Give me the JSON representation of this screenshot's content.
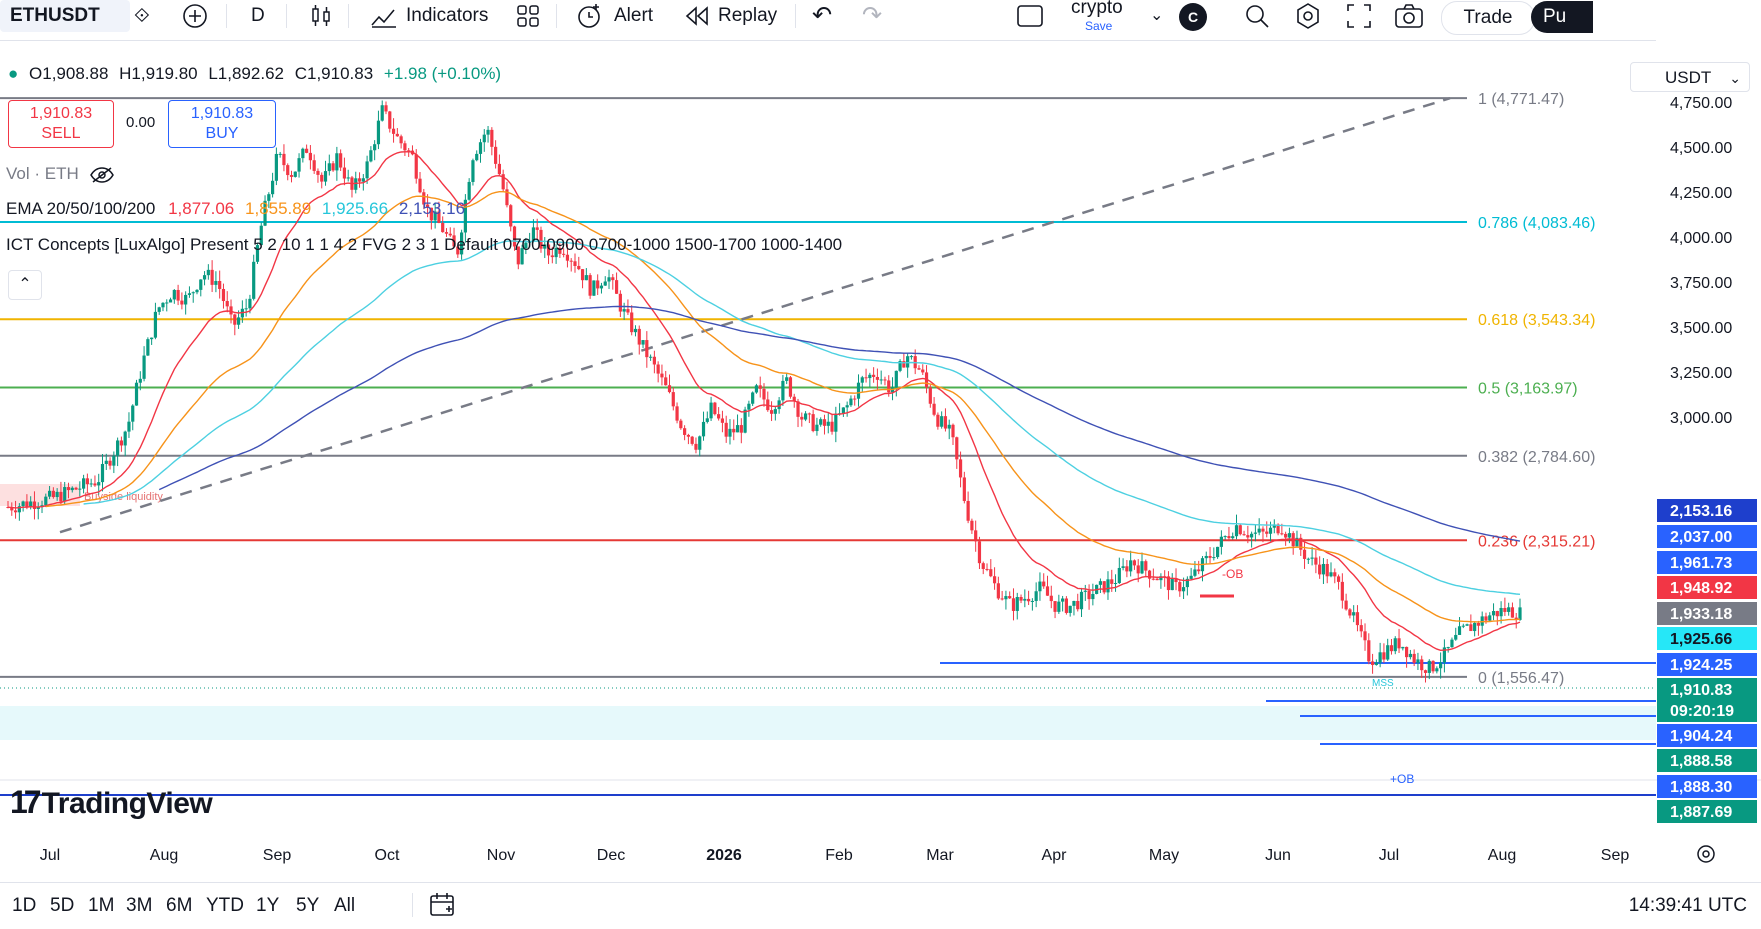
{
  "toolbar": {
    "symbol": "ETHUSDT",
    "interval": "D",
    "indicators": "Indicators",
    "alert": "Alert",
    "replay": "Replay",
    "layout_name": "crypto",
    "save_label": "Save",
    "avatar": "C",
    "trade": "Trade",
    "publish": "Pu"
  },
  "legend": {
    "open": "O1,908.88",
    "high": "H1,919.80",
    "low": "L1,892.62",
    "close": "C1,910.83",
    "change": "+1.98 (+0.10%)",
    "sell_price": "1,910.83",
    "sell_label": "SELL",
    "spread": "0.00",
    "buy_price": "1,910.83",
    "buy_label": "BUY",
    "vol": "Vol · ETH",
    "ema_name": "EMA 20/50/100/200",
    "ema20": "1,877.06",
    "ema50": "1,855.89",
    "ema100": "1,925.66",
    "ema200": "2,153.16",
    "ict": "ICT Concepts [LuxAlgo] Present 5 2 10 1 1 4 2 FVG 2 3 1 Default 0700-0900 0700-1000 1500-1700 1000-1400"
  },
  "currency": "USDT",
  "watermark": "TradingView",
  "bottom": {
    "ranges": [
      "1D",
      "5D",
      "1M",
      "3M",
      "6M",
      "YTD",
      "1Y",
      "5Y",
      "All"
    ],
    "clock": "14:39:41 UTC"
  },
  "colors": {
    "up": "#089981",
    "down": "#f23645",
    "ema20": "#f23645",
    "ema50": "#f7931a",
    "ema100": "#4dd0e1",
    "ema200": "#3f51b5"
  },
  "chart_data": {
    "type": "candlestick",
    "x_ticks": [
      "Jul",
      "Aug",
      "Sep",
      "Oct",
      "Nov",
      "Dec",
      "2026",
      "Feb",
      "Mar",
      "Apr",
      "May",
      "Jun",
      "Jul",
      "Aug",
      "Sep"
    ],
    "y_ticks": [
      4750,
      4500,
      4250,
      4000,
      3750,
      3500,
      3250,
      3000
    ],
    "y_tick_labels": [
      "4,750.00",
      "4,500.00",
      "4,250.00",
      "4,000.00",
      "3,750.00",
      "3,500.00",
      "3,250.00",
      "3,000.00"
    ],
    "close_path": [
      [
        0,
        2500
      ],
      [
        3,
        2550
      ],
      [
        6,
        2650
      ],
      [
        8,
        2950
      ],
      [
        9,
        3300
      ],
      [
        10,
        3600
      ],
      [
        11,
        3700
      ],
      [
        12,
        3650
      ],
      [
        13,
        3800
      ],
      [
        14,
        3750
      ],
      [
        15,
        3500
      ],
      [
        16,
        3620
      ],
      [
        17,
        4100
      ],
      [
        18,
        4450
      ],
      [
        19,
        4350
      ],
      [
        20,
        4500
      ],
      [
        21,
        4300
      ],
      [
        22,
        4450
      ],
      [
        23,
        4250
      ],
      [
        24,
        4400
      ],
      [
        25,
        4700
      ],
      [
        26,
        4550
      ],
      [
        27,
        4450
      ],
      [
        28,
        4150
      ],
      [
        29,
        4050
      ],
      [
        30,
        3900
      ],
      [
        31,
        4450
      ],
      [
        32,
        4600
      ],
      [
        33,
        4300
      ],
      [
        34,
        3850
      ],
      [
        35,
        4050
      ],
      [
        36,
        3900
      ],
      [
        37,
        3950
      ],
      [
        38,
        3850
      ],
      [
        39,
        3700
      ],
      [
        40,
        3800
      ],
      [
        41,
        3600
      ],
      [
        42,
        3450
      ],
      [
        43,
        3300
      ],
      [
        44,
        3150
      ],
      [
        45,
        2950
      ],
      [
        46,
        2850
      ],
      [
        47,
        3050
      ],
      [
        48,
        2900
      ],
      [
        49,
        2950
      ],
      [
        50,
        3150
      ],
      [
        51,
        3050
      ],
      [
        52,
        3200
      ],
      [
        53,
        3000
      ],
      [
        54,
        2950
      ],
      [
        55,
        2950
      ],
      [
        56,
        3050
      ],
      [
        57,
        3200
      ],
      [
        58,
        3250
      ],
      [
        59,
        3150
      ],
      [
        60,
        3350
      ],
      [
        61,
        3250
      ],
      [
        62,
        3000
      ],
      [
        63,
        2900
      ],
      [
        64,
        2500
      ],
      [
        65,
        2200
      ],
      [
        66,
        2050
      ],
      [
        67,
        1950
      ],
      [
        68,
        2000
      ],
      [
        69,
        2050
      ],
      [
        70,
        1950
      ],
      [
        71,
        1950
      ],
      [
        72,
        2000
      ],
      [
        73,
        2050
      ],
      [
        74,
        2100
      ],
      [
        75,
        2200
      ],
      [
        76,
        2150
      ],
      [
        77,
        2100
      ],
      [
        78,
        2050
      ],
      [
        79,
        2100
      ],
      [
        80,
        2200
      ],
      [
        81,
        2300
      ],
      [
        82,
        2400
      ],
      [
        83,
        2350
      ],
      [
        84,
        2350
      ],
      [
        85,
        2400
      ],
      [
        86,
        2300
      ],
      [
        87,
        2200
      ],
      [
        88,
        2150
      ],
      [
        89,
        2050
      ],
      [
        90,
        1850
      ],
      [
        91,
        1650
      ],
      [
        92,
        1700
      ],
      [
        93,
        1750
      ],
      [
        94,
        1650
      ],
      [
        95,
        1600
      ],
      [
        96,
        1680
      ],
      [
        97,
        1800
      ],
      [
        98,
        1850
      ],
      [
        99,
        1900
      ],
      [
        100,
        1930
      ],
      [
        101,
        1910
      ]
    ],
    "fib_levels": [
      {
        "label": "1 (4,771.47)",
        "value": 4771.47,
        "color": "#787b86"
      },
      {
        "label": "0.786 (4,083.46)",
        "value": 4083.46,
        "color": "#00bcd4"
      },
      {
        "label": "0.618 (3,543.34)",
        "value": 3543.34,
        "color": "#f0b400"
      },
      {
        "label": "0.5 (3,163.97)",
        "value": 3163.97,
        "color": "#4caf50"
      },
      {
        "label": "0.382 (2,784.60)",
        "value": 2784.6,
        "color": "#787b86"
      },
      {
        "label": "0.236 (2,315.21)",
        "value": 2315.21,
        "color": "#e53935"
      },
      {
        "label": "0 (1,556.47)",
        "value": 1556.47,
        "color": "#787b86"
      }
    ],
    "price_tags": [
      {
        "label": "2,153.16",
        "color": "#1e3fcc"
      },
      {
        "label": "2,037.00",
        "color": "#2962ff"
      },
      {
        "label": "1,961.73",
        "color": "#2962ff"
      },
      {
        "label": "1,948.92",
        "color": "#f23645"
      },
      {
        "label": "1,933.18",
        "color": "#787b86"
      },
      {
        "label": "1,925.66",
        "color": "#26e7f7"
      },
      {
        "label": "1,924.25",
        "color": "#2962ff"
      },
      {
        "label": "1,910.83",
        "color": "#089981"
      },
      {
        "label": "09:20:19",
        "color": "#089981"
      },
      {
        "label": "1,904.24",
        "color": "#2962ff"
      },
      {
        "label": "1,888.58",
        "color": "#089981"
      },
      {
        "label": "1,888.30",
        "color": "#2962ff"
      },
      {
        "label": "1,887.69",
        "color": "#089981"
      }
    ],
    "annotations": [
      "Buyside liquidity",
      "-OB",
      "MSS",
      "+OB"
    ]
  }
}
